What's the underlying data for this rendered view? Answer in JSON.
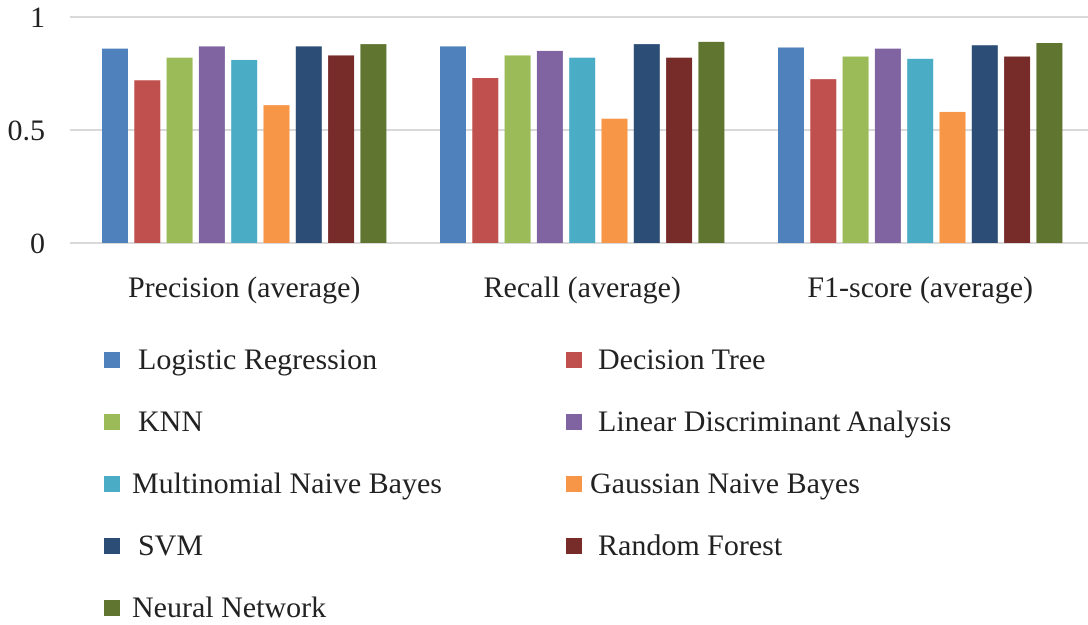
{
  "chart_data": {
    "type": "bar",
    "categories": [
      "Precision (average)",
      "Recall (average)",
      "F1-score (average)"
    ],
    "ylim": [
      0,
      1
    ],
    "yticks": [
      "0",
      "0.5",
      "1"
    ],
    "ytick_values": [
      0,
      0.5,
      1
    ],
    "grid": true,
    "legend_position": "bottom",
    "series": [
      {
        "name": "Logistic Regression",
        "color": "#4F81BD",
        "values": [
          0.86,
          0.87,
          0.865
        ]
      },
      {
        "name": "Decision Tree",
        "color": "#C0504D",
        "values": [
          0.72,
          0.73,
          0.725
        ]
      },
      {
        "name": "KNN",
        "color": "#9BBB59",
        "values": [
          0.82,
          0.83,
          0.825
        ]
      },
      {
        "name": "Linear Discriminant Analysis",
        "color": "#8064A2",
        "values": [
          0.87,
          0.85,
          0.86
        ]
      },
      {
        "name": "Multinomial Naive Bayes",
        "color": "#4BACC6",
        "values": [
          0.81,
          0.82,
          0.815
        ]
      },
      {
        "name": "Gaussian Naive Bayes",
        "color": "#F79646",
        "values": [
          0.61,
          0.55,
          0.58
        ]
      },
      {
        "name": "SVM",
        "color": "#2C4D75",
        "values": [
          0.87,
          0.88,
          0.875
        ]
      },
      {
        "name": "Random Forest",
        "color": "#772C2A",
        "values": [
          0.83,
          0.82,
          0.825
        ]
      },
      {
        "name": "Neural Network",
        "color": "#5F7530",
        "values": [
          0.88,
          0.89,
          0.885
        ]
      }
    ]
  }
}
